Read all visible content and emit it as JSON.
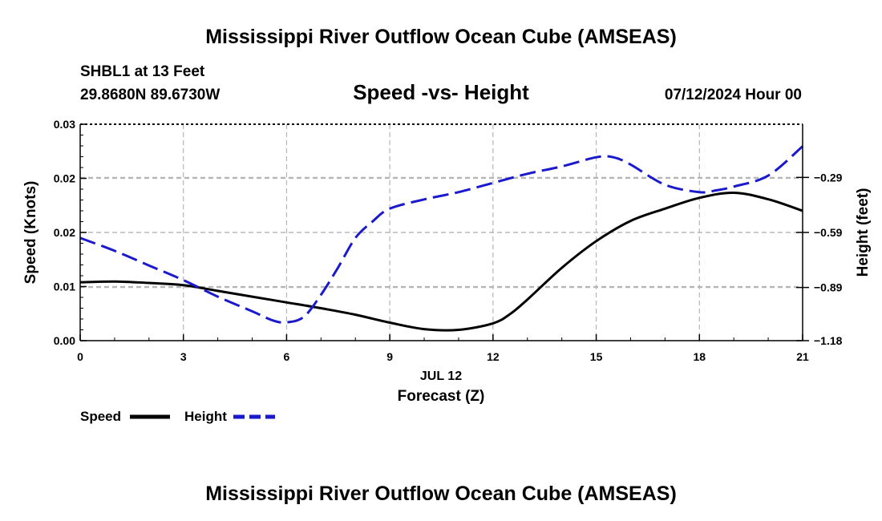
{
  "page": {
    "title": "Mississippi River Outflow Ocean Cube (AMSEAS)",
    "footer_title": "Mississippi River Outflow Ocean Cube (AMSEAS)",
    "station": "SHBL1 at 13 Feet",
    "coords": "29.8680N  89.6730W",
    "chart_title": "Speed -vs- Height",
    "date": "07/12/2024 Hour 00"
  },
  "chart_data": {
    "type": "line",
    "title": "Speed -vs- Height",
    "xlabel": "Forecast (Z)",
    "xlabel_date": "JUL 12",
    "ylabel_left": "Speed (Knots)",
    "ylabel_right": "Height (feet)",
    "x_ticks": [
      0,
      3,
      6,
      9,
      12,
      15,
      18,
      21
    ],
    "x_tick_labels": [
      "0",
      "3",
      "6",
      "9",
      "12",
      "15",
      "18",
      "21"
    ],
    "xlim": [
      0,
      21
    ],
    "y_left_ticks": [
      0.0,
      0.0075,
      0.015,
      0.0225,
      0.03
    ],
    "y_left_tick_labels": [
      "0.00",
      "0.01",
      "0.02",
      "0.02",
      "0.03"
    ],
    "ylim_left": [
      0,
      0.03
    ],
    "y_right_ticks": [
      -1.18,
      -0.89,
      -0.59,
      -0.29
    ],
    "y_right_tick_labels": [
      "−1.18",
      "−0.89",
      "−0.59",
      "−0.29"
    ],
    "ylim_right": [
      -1.18,
      -0.0
    ],
    "grid": true,
    "series": [
      {
        "name": "Speed",
        "axis": "left",
        "color": "#000000",
        "dash": "solid",
        "x": [
          0,
          1,
          2,
          3,
          4,
          5,
          6,
          7,
          8,
          9,
          10,
          11,
          12,
          12.5,
          13,
          14,
          15,
          16,
          17,
          18,
          19,
          20,
          21
        ],
        "values": [
          0.0081,
          0.0082,
          0.008,
          0.0077,
          0.0069,
          0.0061,
          0.0053,
          0.0045,
          0.0036,
          0.0025,
          0.0016,
          0.0015,
          0.0024,
          0.0037,
          0.0057,
          0.0101,
          0.0138,
          0.0166,
          0.0183,
          0.0198,
          0.0205,
          0.0196,
          0.018
        ]
      },
      {
        "name": "Height",
        "axis": "right",
        "color": "#1a1acc",
        "dash": "dashed",
        "x": [
          0,
          1,
          2,
          3,
          4,
          5,
          5.6,
          6,
          6.5,
          7,
          7.5,
          8,
          8.5,
          9,
          10,
          11,
          12,
          13,
          14,
          15,
          15.5,
          16,
          17,
          18,
          18.5,
          19,
          20,
          21
        ],
        "values": [
          -0.62,
          -0.69,
          -0.77,
          -0.85,
          -0.94,
          -1.02,
          -1.07,
          -1.08,
          -1.05,
          -0.93,
          -0.78,
          -0.62,
          -0.53,
          -0.46,
          -0.41,
          -0.37,
          -0.32,
          -0.27,
          -0.23,
          -0.18,
          -0.18,
          -0.22,
          -0.33,
          -0.37,
          -0.36,
          -0.34,
          -0.28,
          -0.12
        ]
      }
    ],
    "legend": [
      {
        "name": "Speed",
        "color": "#000000",
        "dash": "solid"
      },
      {
        "name": "Height",
        "color": "#1a1acc",
        "dash": "dashed"
      }
    ],
    "legend_position": "bottom-left"
  }
}
